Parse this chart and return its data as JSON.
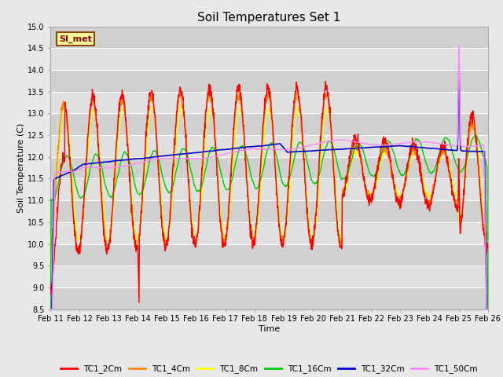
{
  "title": "Soil Temperatures Set 1",
  "xlabel": "Time",
  "ylabel": "Soil Temperature (C)",
  "ylim": [
    8.5,
    15.0
  ],
  "yticks": [
    8.5,
    9.0,
    9.5,
    10.0,
    10.5,
    11.0,
    11.5,
    12.0,
    12.5,
    13.0,
    13.5,
    14.0,
    14.5,
    15.0
  ],
  "fig_facecolor": "#e8e8e8",
  "plot_facecolor": "#e0e0e0",
  "annotation_text": "SI_met",
  "annotation_bg": "#ffff99",
  "annotation_border": "#8b4513",
  "series": {
    "TC1_2Cm": {
      "color": "#ff0000",
      "lw": 1.0
    },
    "TC1_4Cm": {
      "color": "#ff8800",
      "lw": 1.0
    },
    "TC1_8Cm": {
      "color": "#ffff00",
      "lw": 1.0
    },
    "TC1_16Cm": {
      "color": "#00cc00",
      "lw": 1.0
    },
    "TC1_32Cm": {
      "color": "#0000cc",
      "lw": 1.2
    },
    "TC1_50Cm": {
      "color": "#ff88ff",
      "lw": 1.0
    }
  },
  "x_tick_labels": [
    "Feb 11",
    "Feb 12",
    "Feb 13",
    "Feb 14",
    "Feb 15",
    "Feb 16",
    "Feb 17",
    "Feb 18",
    "Feb 19",
    "Feb 20",
    "Feb 21",
    "Feb 22",
    "Feb 23",
    "Feb 24",
    "Feb 25",
    "Feb 26"
  ]
}
